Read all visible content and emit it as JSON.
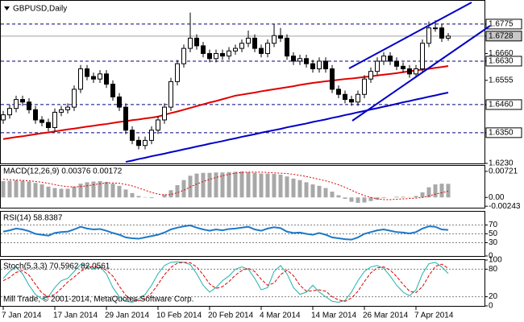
{
  "chart_data": [
    {
      "type": "candlestick",
      "title": "GBPUSD,Daily",
      "categories": [
        "7 Jan 2014",
        null,
        null,
        null,
        null,
        null,
        null,
        null,
        "17 Jan 2014",
        null,
        null,
        null,
        null,
        null,
        null,
        null,
        "29 Jan 2014",
        null,
        null,
        null,
        null,
        null,
        null,
        null,
        "10 Feb 2014",
        null,
        null,
        null,
        null,
        null,
        null,
        null,
        "20 Feb 2014",
        null,
        null,
        null,
        null,
        null,
        null,
        null,
        "4 Mar 2014",
        null,
        null,
        null,
        null,
        null,
        null,
        null,
        "14 Mar 2014",
        null,
        null,
        null,
        null,
        null,
        null,
        null,
        "26 Mar 2014",
        null,
        null,
        null,
        null,
        null,
        null,
        null,
        "7 Apr 2014",
        null,
        null,
        null,
        null,
        null
      ],
      "open": [
        1.64,
        1.642,
        1.6445,
        1.648,
        1.647,
        1.644,
        1.64,
        1.639,
        1.637,
        1.643,
        1.644,
        1.645,
        1.652,
        1.66,
        1.657,
        1.656,
        1.658,
        1.654,
        1.649,
        1.645,
        1.636,
        1.632,
        1.63,
        1.632,
        1.636,
        1.64,
        1.645,
        1.655,
        1.662,
        1.668,
        1.672,
        1.669,
        1.666,
        1.664,
        1.666,
        1.665,
        1.667,
        1.668,
        1.67,
        1.672,
        1.668,
        1.666,
        1.67,
        1.673,
        1.672,
        1.665,
        1.663,
        1.664,
        1.662,
        1.66,
        1.663,
        1.66,
        1.652,
        1.65,
        1.648,
        1.647,
        1.65,
        1.656,
        1.659,
        1.663,
        1.665,
        1.663,
        1.661,
        1.66,
        1.658,
        1.66,
        1.67,
        1.676,
        1.676,
        1.672
      ],
      "high": [
        1.6435,
        1.646,
        1.6495,
        1.6495,
        1.6485,
        1.6455,
        1.6415,
        1.6405,
        1.6445,
        1.6455,
        1.6465,
        1.6535,
        1.6615,
        1.6615,
        1.6585,
        1.6595,
        1.6595,
        1.6555,
        1.6505,
        1.6465,
        1.6375,
        1.6335,
        1.6335,
        1.6375,
        1.6415,
        1.6465,
        1.6565,
        1.6635,
        1.6695,
        1.682,
        1.6735,
        1.6705,
        1.6675,
        1.6675,
        1.6675,
        1.6685,
        1.6695,
        1.6715,
        1.675,
        1.6735,
        1.6695,
        1.6715,
        1.6775,
        1.676,
        1.6735,
        1.6665,
        1.6655,
        1.6655,
        1.6635,
        1.6645,
        1.6645,
        1.6615,
        1.6535,
        1.6515,
        1.6495,
        1.6515,
        1.6575,
        1.6605,
        1.6645,
        1.6665,
        1.6665,
        1.6645,
        1.6625,
        1.6615,
        1.6615,
        1.6715,
        1.6785,
        1.679,
        1.6775,
        1.674
      ],
      "low": [
        1.6385,
        1.6405,
        1.643,
        1.6455,
        1.6425,
        1.6385,
        1.6375,
        1.6355,
        1.6355,
        1.6415,
        1.6425,
        1.6435,
        1.6505,
        1.6555,
        1.6545,
        1.6545,
        1.6525,
        1.6475,
        1.6435,
        1.6345,
        1.6305,
        1.6285,
        1.6285,
        1.6305,
        1.6345,
        1.6385,
        1.6435,
        1.6535,
        1.6605,
        1.6665,
        1.6675,
        1.6645,
        1.6625,
        1.6625,
        1.6635,
        1.6635,
        1.6655,
        1.6665,
        1.6685,
        1.6665,
        1.6645,
        1.6645,
        1.6685,
        1.6705,
        1.6635,
        1.6615,
        1.6615,
        1.6605,
        1.6585,
        1.6585,
        1.6585,
        1.6505,
        1.6485,
        1.6465,
        1.6455,
        1.6455,
        1.6485,
        1.6545,
        1.6575,
        1.6615,
        1.6615,
        1.6595,
        1.6585,
        1.6565,
        1.6565,
        1.6585,
        1.6685,
        1.6745,
        1.6705,
        1.671
      ],
      "close": [
        1.642,
        1.6445,
        1.648,
        1.647,
        1.644,
        1.64,
        1.639,
        1.637,
        1.643,
        1.644,
        1.645,
        1.652,
        1.66,
        1.657,
        1.656,
        1.658,
        1.654,
        1.649,
        1.645,
        1.636,
        1.632,
        1.63,
        1.632,
        1.636,
        1.64,
        1.645,
        1.655,
        1.662,
        1.668,
        1.672,
        1.669,
        1.666,
        1.664,
        1.666,
        1.665,
        1.667,
        1.668,
        1.67,
        1.672,
        1.668,
        1.666,
        1.67,
        1.673,
        1.672,
        1.665,
        1.663,
        1.664,
        1.662,
        1.66,
        1.663,
        1.66,
        1.652,
        1.65,
        1.648,
        1.647,
        1.65,
        1.656,
        1.659,
        1.663,
        1.665,
        1.663,
        1.661,
        1.66,
        1.658,
        1.66,
        1.67,
        1.676,
        1.676,
        1.672,
        1.6728
      ],
      "up_color": "#ffffff",
      "down_color": "#000000",
      "series": [
        {
          "color": "#e00000",
          "values": [
            1.6325,
            1.6329,
            1.6333,
            1.6336,
            1.634,
            1.6344,
            1.6348,
            1.6351,
            1.6355,
            1.6359,
            1.6363,
            1.6366,
            1.637,
            1.6374,
            1.6377,
            1.6381,
            1.6384,
            1.6388,
            1.6392,
            1.6395,
            1.6399,
            1.6402,
            1.6406,
            1.6409,
            1.6413,
            1.642,
            1.6427,
            1.6433,
            1.644,
            1.6447,
            1.6454,
            1.6461,
            1.6468,
            1.6474,
            1.6481,
            1.6488,
            1.6495,
            1.6499,
            1.6503,
            1.6507,
            1.6512,
            1.6516,
            1.652,
            1.6524,
            1.6528,
            1.6532,
            1.6537,
            1.6541,
            1.6545,
            1.6548,
            1.6551,
            1.6554,
            1.6557,
            1.656,
            1.6562,
            1.6565,
            1.6568,
            1.6571,
            1.6574,
            1.6577,
            1.658,
            1.6583,
            1.6587,
            1.659,
            1.6594,
            1.6597,
            1.66,
            1.6604,
            1.6607,
            1.6611
          ]
        },
        {
          "color": "#0000c8",
          "values": [
            null,
            null,
            null,
            null,
            null,
            null,
            null,
            null,
            null,
            null,
            null,
            null,
            null,
            null,
            null,
            null,
            null,
            null,
            null,
            1.6236,
            1.6241,
            1.6247,
            1.6252,
            1.6258,
            1.6263,
            1.6268,
            1.6274,
            1.6279,
            1.6285,
            1.629,
            1.6296,
            1.6301,
            1.6307,
            1.6312,
            1.6317,
            1.6323,
            1.6328,
            1.6334,
            1.6339,
            1.6344,
            1.635,
            1.6355,
            1.636,
            1.6365,
            1.6371,
            1.6376,
            1.6381,
            1.6386,
            1.6392,
            1.6397,
            1.6402,
            1.6408,
            1.6413,
            1.6419,
            1.6424,
            1.643,
            1.6435,
            1.6441,
            1.6446,
            1.6452,
            1.6457,
            1.6463,
            1.6469,
            1.6474,
            1.648,
            1.6485,
            1.6491,
            1.6496,
            1.6502,
            1.6507
          ]
        }
      ],
      "hlines": [
        1.6775,
        1.663,
        1.646,
        1.635
      ],
      "hline_color": "#000080",
      "ylim": [
        1.6233,
        1.6863
      ],
      "yticks": [
        1.6775,
        1.6728,
        {
          "value": 1.666,
          "label": "1.6660"
        },
        {
          "value": 1.663,
          "label": "1.6630"
        },
        1.6555,
        {
          "value": 1.646,
          "label": "1.6460"
        },
        {
          "value": 1.635,
          "label": "1.6350"
        },
        {
          "value": 1.623,
          "label": "1.6230"
        }
      ]
    },
    {
      "type": "macd",
      "title": "MACD(12,26,9) 0.00376 0.00172",
      "series": [
        {
          "style": "bars",
          "color": "#a8a8a8",
          "values": [
            0.0045,
            0.0046,
            0.0047,
            0.0046,
            0.0044,
            0.004,
            0.0036,
            0.003,
            0.0026,
            0.0024,
            0.0024,
            0.003,
            0.0038,
            0.0042,
            0.0044,
            0.0045,
            0.0043,
            0.0038,
            0.0032,
            0.0022,
            0.0012,
            0.0004,
            0.0001,
            -0.0002,
            0.0,
            0.0008,
            0.002,
            0.0034,
            0.0048,
            0.006,
            0.0066,
            0.0068,
            0.0068,
            0.0069,
            0.0069,
            0.007,
            0.0071,
            0.0072,
            0.007,
            0.0068,
            0.0066,
            0.0066,
            0.0065,
            0.0063,
            0.0058,
            0.0052,
            0.0048,
            0.0042,
            0.0036,
            0.0032,
            0.0026,
            0.0016,
            0.0006,
            -0.0004,
            -0.0012,
            -0.0015,
            -0.0014,
            -0.001,
            -0.0006,
            -0.0002,
            0.0,
            0.0002,
            0.0002,
            0.0001,
            0.0004,
            0.0014,
            0.0028,
            0.0036,
            0.0038,
            0.00376
          ]
        },
        {
          "style": "dotted",
          "color": "#e00000",
          "values": [
            0.005,
            0.0049,
            0.0048,
            0.0047,
            0.0046,
            0.0044,
            0.0042,
            0.0039,
            0.0035,
            0.0032,
            0.003,
            0.0029,
            0.003,
            0.0032,
            0.0035,
            0.0038,
            0.004,
            0.004,
            0.0039,
            0.0036,
            0.0032,
            0.0026,
            0.002,
            0.0014,
            0.0009,
            0.0007,
            0.0008,
            0.0013,
            0.002,
            0.0029,
            0.0037,
            0.0044,
            0.005,
            0.0055,
            0.006,
            0.0064,
            0.0067,
            0.0069,
            0.007,
            0.007,
            0.007,
            0.0069,
            0.0068,
            0.0067,
            0.0066,
            0.0064,
            0.0061,
            0.0058,
            0.0054,
            0.005,
            0.0046,
            0.0041,
            0.0035,
            0.0028,
            0.002,
            0.0012,
            0.0005,
            0.0,
            -0.0004,
            -0.0006,
            -0.0006,
            -0.0005,
            -0.0004,
            -0.0003,
            -0.0002,
            0.0,
            0.0004,
            0.0009,
            0.0013,
            0.00172
          ]
        }
      ],
      "ylim": [
        -0.00284,
        0.00874
      ],
      "yticks": [
        0.00721,
        {
          "value": 0,
          "label": "0.00"
        },
        -0.00243
      ]
    },
    {
      "type": "rsi",
      "title": "RSI(14) 58.8387",
      "series": [
        {
          "style": "solid",
          "color": "#1e78c8",
          "values": [
            55,
            58,
            62,
            60,
            56,
            50,
            48,
            46,
            52,
            54,
            55,
            60,
            66,
            62,
            60,
            61,
            57,
            52,
            48,
            42,
            40,
            39,
            42,
            45,
            48,
            53,
            60,
            64,
            67,
            69,
            64,
            60,
            57,
            60,
            58,
            61,
            62,
            64,
            66,
            60,
            57,
            62,
            65,
            63,
            55,
            52,
            53,
            50,
            48,
            52,
            48,
            42,
            40,
            38,
            37,
            42,
            50,
            54,
            58,
            60,
            57,
            54,
            53,
            51,
            54,
            62,
            67,
            66,
            60,
            58.8387
          ]
        }
      ],
      "ylim": [
        0,
        100
      ],
      "yticks": [
        0,
        30,
        50,
        70
      ],
      "grid": true
    },
    {
      "type": "stochastic",
      "title": "Stoch(5,3,3) 70.5962 82.0561",
      "annotation": "Mill Trade, © 2001-2014, MetaQuotes Software Corp.",
      "series": [
        {
          "style": "solid",
          "color": "#20b2aa",
          "values": [
            60,
            75,
            85,
            70,
            45,
            25,
            15,
            20,
            40,
            55,
            60,
            75,
            90,
            88,
            80,
            85,
            70,
            40,
            20,
            10,
            8,
            15,
            25,
            45,
            70,
            88,
            95,
            96,
            95,
            90,
            70,
            45,
            30,
            40,
            55,
            65,
            80,
            85,
            80,
            60,
            35,
            40,
            75,
            88,
            70,
            40,
            25,
            30,
            45,
            30,
            20,
            10,
            8,
            12,
            30,
            55,
            75,
            85,
            88,
            82,
            65,
            45,
            30,
            22,
            35,
            70,
            92,
            95,
            85,
            70.5962
          ]
        },
        {
          "style": "dashed",
          "color": "#e00000",
          "values": [
            55,
            62,
            73,
            77,
            67,
            47,
            28,
            20,
            25,
            38,
            52,
            63,
            75,
            84,
            86,
            84,
            78,
            65,
            43,
            23,
            13,
            11,
            16,
            28,
            47,
            68,
            84,
            93,
            95,
            94,
            85,
            68,
            48,
            38,
            42,
            53,
            67,
            77,
            82,
            75,
            58,
            45,
            50,
            68,
            78,
            66,
            45,
            32,
            33,
            35,
            32,
            20,
            13,
            10,
            17,
            32,
            53,
            72,
            83,
            85,
            78,
            64,
            47,
            32,
            29,
            42,
            66,
            86,
            91,
            82.0561
          ]
        }
      ],
      "ylim": [
        0,
        100
      ],
      "yticks": [
        0,
        20,
        80,
        100
      ],
      "grid": true
    }
  ]
}
